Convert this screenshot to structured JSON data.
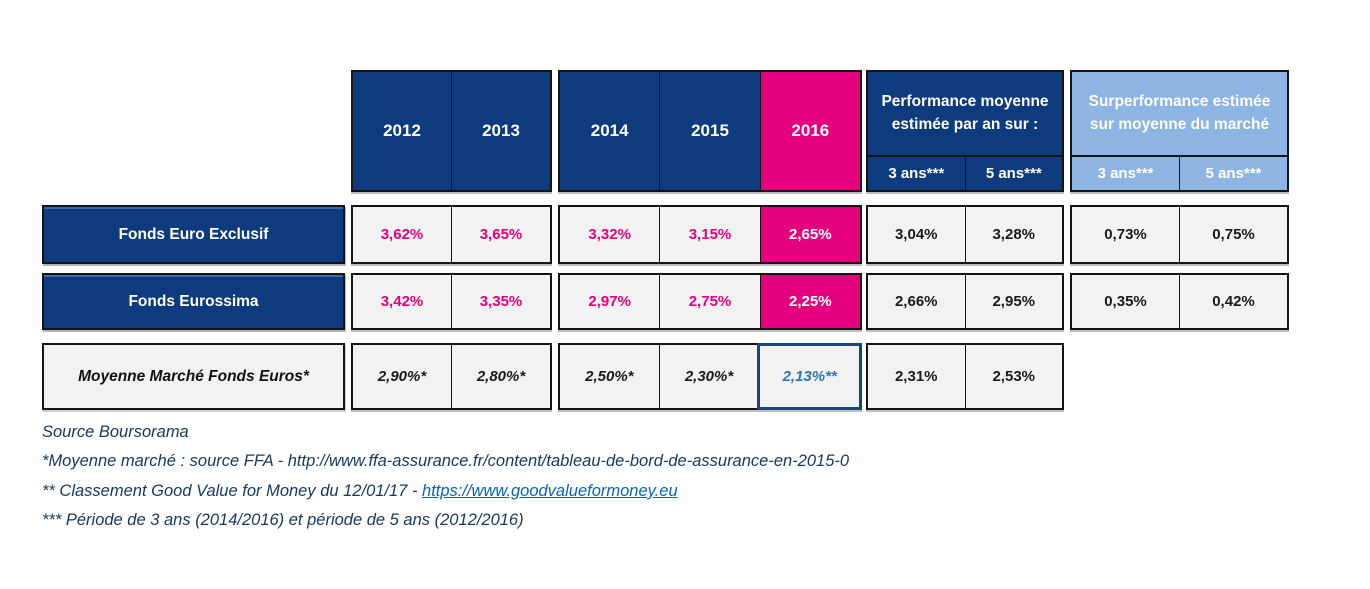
{
  "colors": {
    "navy": "#0E3B7E",
    "pink": "#E5007D",
    "light_blue": "#8DB4E2",
    "cell_bg": "#F2F2F2",
    "highlight_blue": "#2E74B5",
    "footer_text": "#17375E",
    "link": "#0563C1"
  },
  "header": {
    "years": [
      "2012",
      "2013",
      "2014",
      "2015",
      "2016"
    ],
    "perf_group": {
      "title": "Performance moyenne estimée par an sur  :",
      "sub": [
        "3 ans***",
        "5 ans***"
      ]
    },
    "surperf_group": {
      "title": "Surperformance estimée sur moyenne du marché",
      "sub": [
        "3 ans***",
        "5 ans***"
      ]
    }
  },
  "rows": [
    {
      "label": "Fonds Euro Exclusif",
      "values": [
        "3,62%",
        "3,65%",
        "3,32%",
        "3,15%",
        "2,65%"
      ],
      "perf": [
        "3,04%",
        "3,28%"
      ],
      "surperf": [
        "0,73%",
        "0,75%"
      ]
    },
    {
      "label": "Fonds Eurossima",
      "values": [
        "3,42%",
        "3,35%",
        "2,97%",
        "2,75%",
        "2,25%"
      ],
      "perf": [
        "2,66%",
        "2,95%"
      ],
      "surperf": [
        "0,35%",
        "0,42%"
      ]
    },
    {
      "label": "Moyenne Marché Fonds Euros*",
      "values": [
        "2,90%*",
        "2,80%*",
        "2,50%*",
        "2,30%*",
        "2,13%**"
      ],
      "perf": [
        "2,31%",
        "2,53%"
      ],
      "surperf": []
    }
  ],
  "footnotes": {
    "line1": "Source Boursorama",
    "line2": "*Moyenne marché : source FFA - http://www.ffa-assurance.fr/content/tableau-de-bord-de-assurance-en-2015-0",
    "line3_prefix": "** Classement Good Value for Money du 12/01/17 - ",
    "line3_link": "https://www.goodvalueformoney.eu",
    "line4": "*** Période de 3 ans (2014/2016) et période de 5 ans (2012/2016)"
  }
}
